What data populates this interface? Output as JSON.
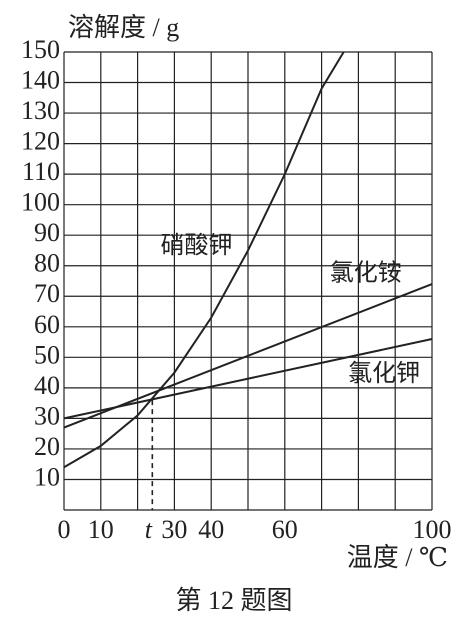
{
  "chart_data": {
    "type": "line",
    "y_label": "溶解度 / g",
    "x_label": "温度 / ℃",
    "caption": "第 12 题图",
    "xlim": [
      0,
      100
    ],
    "ylim": [
      0,
      150
    ],
    "xticks": [
      0,
      10,
      30,
      40,
      60,
      100
    ],
    "yticks": [
      10,
      20,
      30,
      40,
      50,
      60,
      70,
      80,
      90,
      100,
      110,
      120,
      130,
      140,
      150
    ],
    "xgrid": [
      0,
      10,
      20,
      30,
      40,
      50,
      60,
      70,
      80,
      90,
      100
    ],
    "ygrid": [
      0,
      10,
      20,
      30,
      40,
      50,
      60,
      70,
      80,
      90,
      100,
      110,
      120,
      130,
      140,
      150
    ],
    "grid": true,
    "color": "#222222",
    "series": [
      {
        "name": "硝酸钾",
        "color": "#222222",
        "x": [
          0,
          10,
          20,
          30,
          40,
          50,
          60,
          70,
          76
        ],
        "values": [
          14,
          21,
          31,
          45,
          63,
          85,
          110,
          138,
          150
        ]
      },
      {
        "name": "氯化铵",
        "color": "#222222",
        "x": [
          0,
          100
        ],
        "values": [
          27,
          74
        ]
      },
      {
        "name": "氯化钾",
        "color": "#222222",
        "x": [
          0,
          100
        ],
        "values": [
          30,
          56
        ]
      }
    ],
    "marker": {
      "label": "t",
      "x": 24,
      "y": 36
    }
  }
}
